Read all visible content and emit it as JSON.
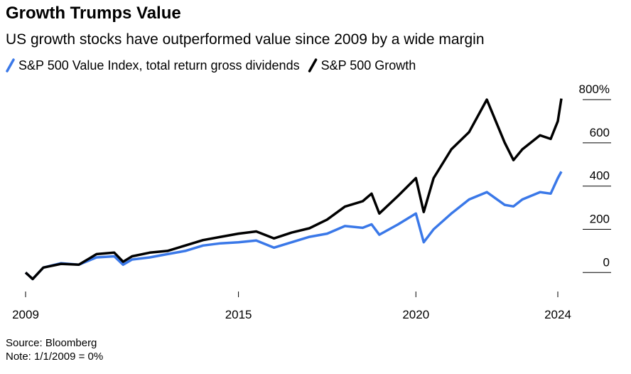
{
  "chart_data": {
    "type": "line",
    "title": "Growth Trumps Value",
    "subtitle": "US growth stocks have outperformed value since 2009 by a wide margin",
    "source": "Source: Bloomberg",
    "note": "Note: 1/1/2009 = 0%",
    "x": [
      2009.0,
      2009.2,
      2009.5,
      2010.0,
      2010.5,
      2011.0,
      2011.5,
      2011.75,
      2012.0,
      2012.5,
      2013.0,
      2013.5,
      2014.0,
      2014.5,
      2015.0,
      2015.5,
      2016.0,
      2016.5,
      2017.0,
      2017.5,
      2018.0,
      2018.5,
      2018.75,
      2018.97,
      2019.5,
      2020.0,
      2020.22,
      2020.5,
      2021.0,
      2021.5,
      2022.0,
      2022.5,
      2022.75,
      2023.0,
      2023.5,
      2023.8,
      2024.0,
      2024.1
    ],
    "series": [
      {
        "name": "S&P 500 Value Index, total return gross dividends",
        "color": "#3a78e8",
        "values": [
          0,
          -30,
          23,
          43,
          36,
          70,
          75,
          36,
          60,
          70,
          85,
          100,
          125,
          135,
          140,
          148,
          115,
          140,
          165,
          180,
          215,
          207,
          223,
          175,
          223,
          273,
          140,
          200,
          273,
          338,
          372,
          313,
          306,
          338,
          372,
          365,
          437,
          467
        ]
      },
      {
        "name": "S&P 500 Growth",
        "color": "#000000",
        "values": [
          0,
          -30,
          23,
          40,
          36,
          85,
          92,
          50,
          75,
          92,
          100,
          125,
          150,
          165,
          180,
          190,
          158,
          185,
          205,
          245,
          305,
          330,
          365,
          273,
          355,
          437,
          280,
          437,
          570,
          650,
          800,
          602,
          520,
          570,
          635,
          618,
          700,
          805
        ]
      }
    ],
    "xlim": [
      2009,
      2024.1
    ],
    "ylim": [
      -55,
      830
    ],
    "xticks": [
      2009,
      2015,
      2020,
      2024
    ],
    "yticks": [
      0,
      200,
      400,
      600,
      {
        "value": 800,
        "label": "800%"
      }
    ]
  }
}
